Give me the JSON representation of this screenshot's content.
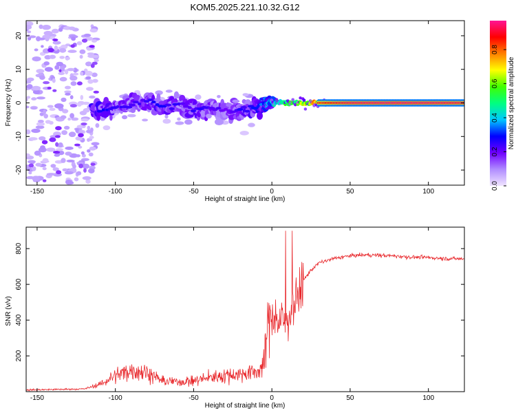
{
  "title": "KOM5.2025.221.10.32.G12",
  "chart_data": [
    {
      "type": "heatmap",
      "xlabel": "Height of straight line (km)",
      "ylabel": "Frequency (Hz)",
      "xlim": [
        -157,
        123
      ],
      "ylim": [
        -24.5,
        24.5
      ],
      "x_ticks": [
        -150,
        -100,
        -50,
        0,
        50,
        100
      ],
      "y_ticks": [
        -20,
        -10,
        0,
        10,
        20
      ],
      "colorbar": {
        "label": "Normalized spectral amplitude",
        "range": [
          0,
          0.97
        ],
        "ticks": [
          0.0,
          0.2,
          0.4,
          0.6,
          0.8
        ],
        "tick_labels": [
          "0.0",
          "0.2",
          "0.4",
          "0.6",
          "0.8"
        ],
        "colormap": [
          "#f0e4ff",
          "#b08cff",
          "#7000ff",
          "#0000ff",
          "#00c8ff",
          "#00ff80",
          "#40ff00",
          "#ffff00",
          "#ff8000",
          "#ff0000",
          "#ff1493"
        ]
      },
      "ridge": [
        {
          "x": -110,
          "f": -2.5,
          "a": 0.25
        },
        {
          "x": -100,
          "f": -1.5,
          "a": 0.22
        },
        {
          "x": -90,
          "f": -0.5,
          "a": 0.2
        },
        {
          "x": -80,
          "f": 0.5,
          "a": 0.22
        },
        {
          "x": -70,
          "f": -1.0,
          "a": 0.24
        },
        {
          "x": -60,
          "f": -0.5,
          "a": 0.2
        },
        {
          "x": -50,
          "f": -2.0,
          "a": 0.22
        },
        {
          "x": -40,
          "f": -1.5,
          "a": 0.2
        },
        {
          "x": -30,
          "f": -2.5,
          "a": 0.18
        },
        {
          "x": -20,
          "f": -2.0,
          "a": 0.22
        },
        {
          "x": -10,
          "f": -1.0,
          "a": 0.28
        },
        {
          "x": 0,
          "f": 0.0,
          "a": 0.45
        },
        {
          "x": 10,
          "f": 0.0,
          "a": 0.6
        },
        {
          "x": 20,
          "f": 0.0,
          "a": 0.7
        },
        {
          "x": 30,
          "f": 0.0,
          "a": 0.85
        },
        {
          "x": 50,
          "f": 0.0,
          "a": 0.93
        },
        {
          "x": 75,
          "f": 0.0,
          "a": 0.95
        },
        {
          "x": 100,
          "f": 0.0,
          "a": 0.94
        },
        {
          "x": 123,
          "f": 0.0,
          "a": 0.92
        }
      ]
    },
    {
      "type": "line",
      "xlabel": "Height of straight line (km)",
      "ylabel": "SNR (v/v)",
      "xlim": [
        -157,
        123
      ],
      "ylim": [
        0,
        920
      ],
      "x_ticks": [
        -150,
        -100,
        -50,
        0,
        50,
        100
      ],
      "y_ticks": [
        200,
        400,
        600,
        800
      ],
      "color": "#e8262a",
      "trend": [
        {
          "x": -157,
          "y": 10
        },
        {
          "x": -120,
          "y": 15
        },
        {
          "x": -110,
          "y": 40
        },
        {
          "x": -100,
          "y": 90
        },
        {
          "x": -90,
          "y": 120
        },
        {
          "x": -80,
          "y": 110
        },
        {
          "x": -70,
          "y": 60
        },
        {
          "x": -60,
          "y": 55
        },
        {
          "x": -50,
          "y": 60
        },
        {
          "x": -40,
          "y": 80
        },
        {
          "x": -30,
          "y": 90
        },
        {
          "x": -20,
          "y": 100
        },
        {
          "x": -10,
          "y": 110
        },
        {
          "x": -5,
          "y": 150
        },
        {
          "x": -3,
          "y": 350
        },
        {
          "x": 0,
          "y": 450
        },
        {
          "x": 5,
          "y": 380
        },
        {
          "x": 10,
          "y": 420
        },
        {
          "x": 15,
          "y": 500
        },
        {
          "x": 20,
          "y": 620
        },
        {
          "x": 25,
          "y": 680
        },
        {
          "x": 30,
          "y": 720
        },
        {
          "x": 40,
          "y": 745
        },
        {
          "x": 50,
          "y": 760
        },
        {
          "x": 60,
          "y": 765
        },
        {
          "x": 70,
          "y": 762
        },
        {
          "x": 80,
          "y": 758
        },
        {
          "x": 90,
          "y": 752
        },
        {
          "x": 100,
          "y": 750
        },
        {
          "x": 110,
          "y": 745
        },
        {
          "x": 123,
          "y": 742
        }
      ]
    }
  ]
}
